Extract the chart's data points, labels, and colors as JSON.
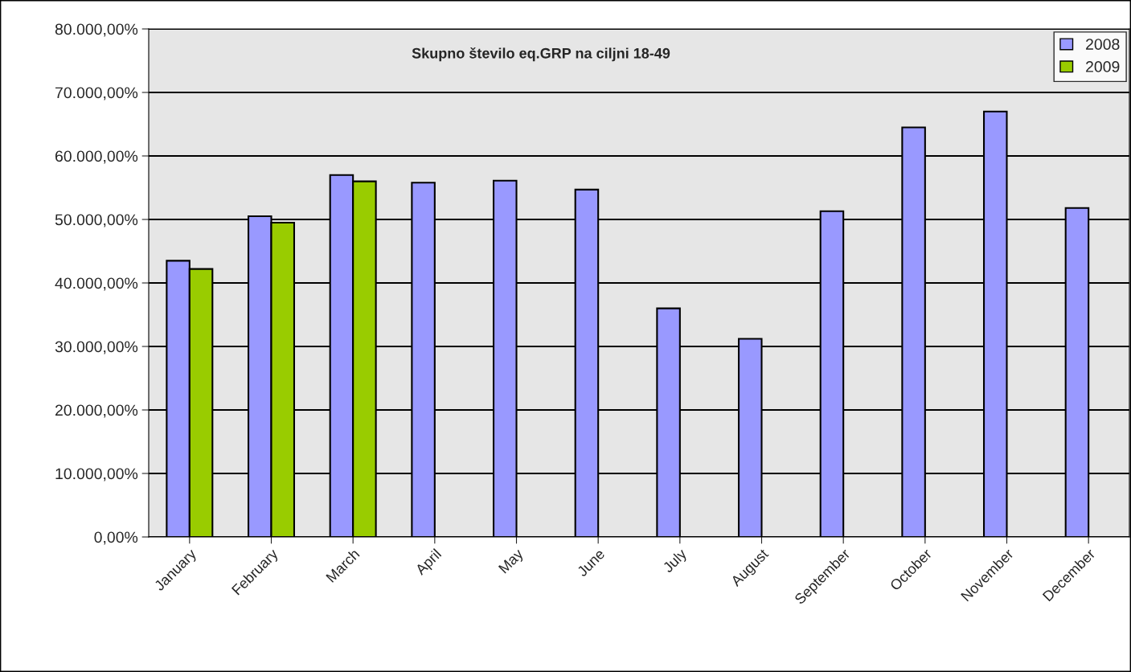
{
  "chart_data": {
    "type": "bar",
    "title": "Skupno število eq.GRP na ciljni 18-49",
    "categories": [
      "January",
      "February",
      "March",
      "April",
      "May",
      "June",
      "July",
      "August",
      "September",
      "October",
      "November",
      "December"
    ],
    "series": [
      {
        "name": "2008",
        "color": "#9999ff",
        "values": [
          43500,
          50500,
          57000,
          55800,
          56100,
          54700,
          36000,
          31200,
          51300,
          64500,
          67000,
          51800
        ]
      },
      {
        "name": "2009",
        "color": "#99cc00",
        "values": [
          42200,
          49500,
          56000,
          null,
          null,
          null,
          null,
          null,
          null,
          null,
          null,
          null
        ]
      }
    ],
    "ylim": [
      0,
      80000
    ],
    "yticks": [
      {
        "value": 0,
        "label": "0,00%"
      },
      {
        "value": 10000,
        "label": "10.000,00%"
      },
      {
        "value": 20000,
        "label": "20.000,00%"
      },
      {
        "value": 30000,
        "label": "30.000,00%"
      },
      {
        "value": 40000,
        "label": "40.000,00%"
      },
      {
        "value": 50000,
        "label": "50.000,00%"
      },
      {
        "value": 60000,
        "label": "60.000,00%"
      },
      {
        "value": 70000,
        "label": "70.000,00%"
      },
      {
        "value": 80000,
        "label": "80.000,00%"
      }
    ],
    "grid": "y",
    "legend": "top right"
  }
}
